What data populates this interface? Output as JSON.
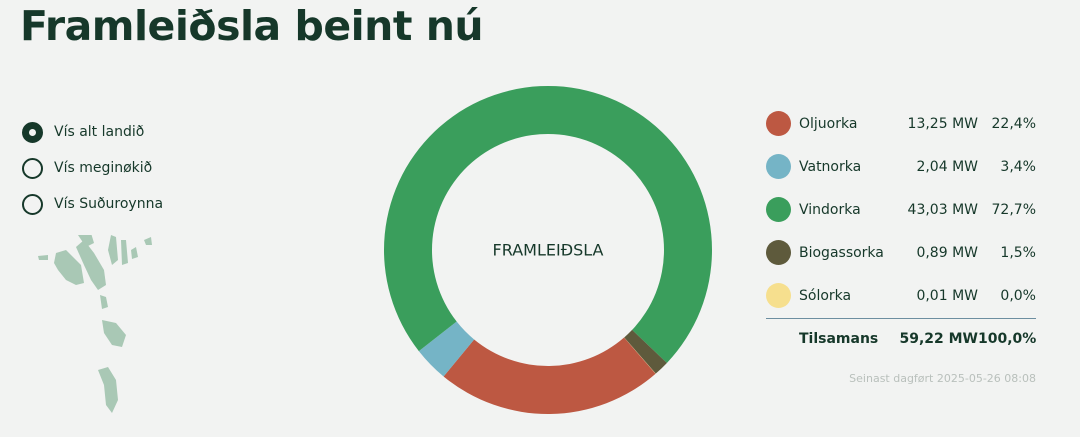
{
  "title": "Framleiðsla beint nú",
  "view_options": [
    {
      "label": "Vís alt landið",
      "selected": true
    },
    {
      "label": "Vís meginøkið",
      "selected": false
    },
    {
      "label": "Vís Suðuroynna",
      "selected": false
    }
  ],
  "chart_data": {
    "type": "pie",
    "donut": true,
    "center_label": "FRAMLEIÐSLA",
    "unit": "MW",
    "series": [
      {
        "name": "Oljuorka",
        "value": 13.25,
        "value_label": "13,25 MW",
        "percent_label": "22,4%",
        "color": "#bd5842"
      },
      {
        "name": "Vatnorka",
        "value": 2.04,
        "value_label": "2,04 MW",
        "percent_label": "3,4%",
        "color": "#75b4c6"
      },
      {
        "name": "Vindorka",
        "value": 43.03,
        "value_label": "43,03 MW",
        "percent_label": "72,7%",
        "color": "#3a9e5c"
      },
      {
        "name": "Biogassorka",
        "value": 0.89,
        "value_label": "0,89 MW",
        "percent_label": "1,5%",
        "color": "#5e5a3c"
      },
      {
        "name": "Sólorka",
        "value": 0.01,
        "value_label": "0,01 MW",
        "percent_label": "0,0%",
        "color": "#f6df8e"
      }
    ],
    "total": {
      "label": "Tilsamans",
      "value_label": "59,22 MW",
      "percent_label": "100,0%"
    }
  },
  "updated": "Seinast dagført 2025-05-26 08:08",
  "map_color": "#a9c8b5"
}
